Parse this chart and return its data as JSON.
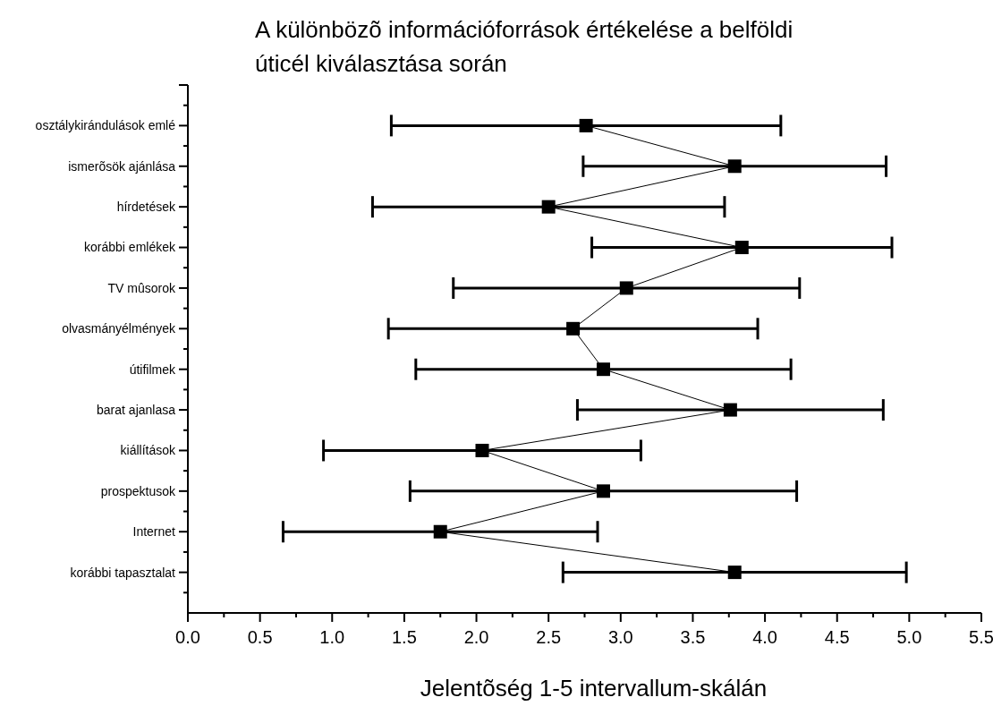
{
  "chart_data": {
    "type": "line",
    "orientation": "horizontal",
    "title": "A különbözõ információforrások értékelése a belföldi úticél kiválasztása során",
    "xlabel": "Jelentõség 1-5 intervallum-skálán",
    "categories": [
      "osztálykirándulások emlé",
      "ismerõsök ajánlása",
      "hírdetések",
      "korábbi emlékek",
      "TV mûsorok",
      "olvasmányélmények",
      "útifilmek",
      "barat ajanlasa",
      "kiállítások",
      "prospektusok",
      "Internet",
      "korábbi tapasztalat"
    ],
    "series": [
      {
        "color": "#000000",
        "values": [
          2.76,
          3.79,
          2.5,
          3.84,
          3.04,
          2.67,
          2.88,
          3.76,
          2.04,
          2.88,
          1.75,
          3.79
        ],
        "errors": [
          1.35,
          1.05,
          1.22,
          1.04,
          1.2,
          1.28,
          1.3,
          1.06,
          1.1,
          1.34,
          1.09,
          1.19
        ]
      }
    ],
    "marker": "square",
    "line_style": "solid",
    "xlim": [
      0,
      5.5
    ],
    "xticks": [
      {
        "value": 0,
        "label": "0.0"
      },
      {
        "value": 0.25,
        "label": null
      },
      0.5,
      {
        "value": 0.75,
        "label": null
      },
      {
        "value": 1,
        "label": "1.0"
      },
      {
        "value": 1.25,
        "label": null
      },
      1.5,
      {
        "value": 1.75,
        "label": null
      },
      {
        "value": 2,
        "label": "2.0"
      },
      {
        "value": 2.25,
        "label": null
      },
      2.5,
      {
        "value": 2.75,
        "label": null
      },
      {
        "value": 3,
        "label": "3.0"
      },
      {
        "value": 3.25,
        "label": null
      },
      3.5,
      {
        "value": 3.75,
        "label": null
      },
      {
        "value": 4,
        "label": "4.0"
      },
      {
        "value": 4.25,
        "label": null
      },
      4.5,
      {
        "value": 4.75,
        "label": null
      },
      {
        "value": 5,
        "label": "5.0"
      },
      {
        "value": 5.25,
        "label": null
      },
      5.5
    ]
  }
}
